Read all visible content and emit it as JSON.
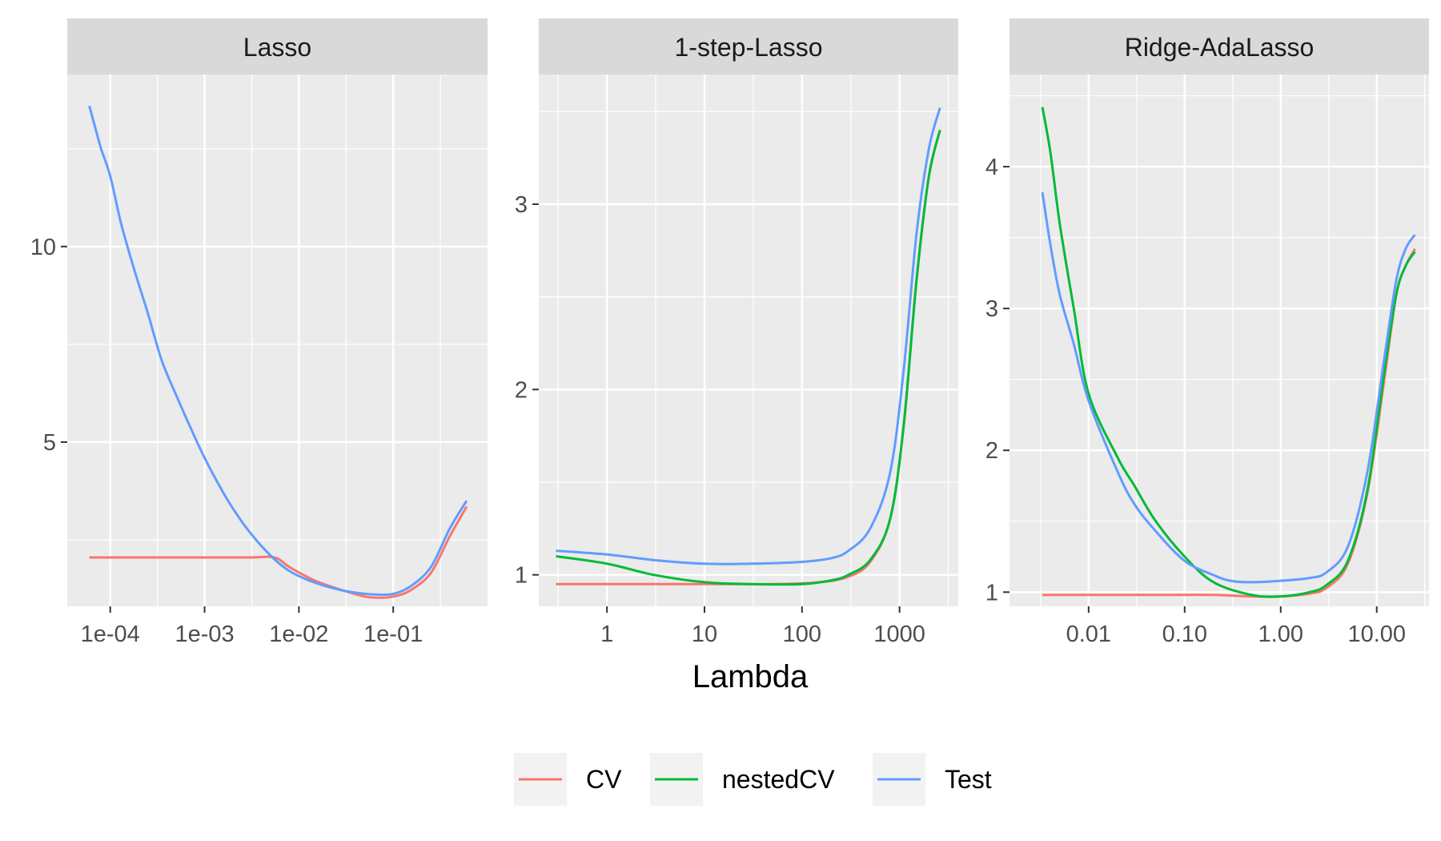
{
  "chart_data": {
    "type": "line",
    "xlabel": "Lambda",
    "ylabel": "",
    "x_scale": "log10",
    "grid": true,
    "legend_position": "bottom",
    "series_names": [
      "CV",
      "nestedCV",
      "Test"
    ],
    "series_colors": {
      "CV": "#F8766D",
      "nestedCV": "#00BA38",
      "Test": "#619CFF"
    },
    "panels": [
      {
        "title": "Lasso",
        "xlim": [
          3.5e-05,
          1.0
        ],
        "ylim": [
          0.8,
          14.4
        ],
        "x_ticks": [
          {
            "value": 0.0001,
            "label": "1e-04"
          },
          {
            "value": 0.001,
            "label": "1e-03"
          },
          {
            "value": 0.01,
            "label": "1e-02"
          },
          {
            "value": 0.1,
            "label": "1e-01"
          }
        ],
        "y_ticks": [
          {
            "value": 5,
            "label": "5"
          },
          {
            "value": 10,
            "label": "10"
          }
        ],
        "series": [
          {
            "name": "CV",
            "x": [
              6e-05,
              0.0001,
              0.0003,
              0.001,
              0.003,
              0.0055,
              0.008,
              0.015,
              0.03,
              0.05,
              0.07,
              0.1,
              0.15,
              0.25,
              0.4,
              0.6
            ],
            "y": [
              2.05,
              2.05,
              2.05,
              2.05,
              2.05,
              2.05,
              1.8,
              1.45,
              1.2,
              1.05,
              1.02,
              1.05,
              1.2,
              1.65,
              2.6,
              3.35
            ]
          },
          {
            "name": "nestedCV",
            "x": [],
            "y": []
          },
          {
            "name": "Test",
            "x": [
              6e-05,
              7e-05,
              8e-05,
              0.0001,
              0.00013,
              0.00018,
              0.00025,
              0.00035,
              0.0005,
              0.0007,
              0.001,
              0.0015,
              0.002,
              0.003,
              0.005,
              0.008,
              0.015,
              0.03,
              0.05,
              0.07,
              0.1,
              0.15,
              0.25,
              0.4,
              0.6
            ],
            "y": [
              13.6,
              13.0,
              12.5,
              11.8,
              10.6,
              9.4,
              8.3,
              7.1,
              6.2,
              5.4,
              4.6,
              3.8,
              3.3,
              2.7,
              2.1,
              1.7,
              1.4,
              1.2,
              1.12,
              1.1,
              1.12,
              1.3,
              1.8,
              2.8,
              3.5
            ]
          }
        ]
      },
      {
        "title": "1-step-Lasso",
        "xlim": [
          0.2,
          4000
        ],
        "ylim": [
          0.83,
          3.7
        ],
        "x_ticks": [
          {
            "value": 1,
            "label": "1"
          },
          {
            "value": 10,
            "label": "10"
          },
          {
            "value": 100,
            "label": "100"
          },
          {
            "value": 1000,
            "label": "1000"
          }
        ],
        "y_ticks": [
          {
            "value": 1,
            "label": "1"
          },
          {
            "value": 2,
            "label": "2"
          },
          {
            "value": 3,
            "label": "3"
          }
        ],
        "series": [
          {
            "name": "CV",
            "x": [
              0.3,
              1,
              10,
              50,
              150,
              300,
              500,
              800,
              1100,
              1500,
              2000,
              2600
            ],
            "y": [
              0.95,
              0.95,
              0.95,
              0.95,
              0.96,
              0.99,
              1.07,
              1.3,
              1.8,
              2.6,
              3.15,
              3.4
            ]
          },
          {
            "name": "nestedCV",
            "x": [
              0.3,
              1,
              3,
              10,
              30,
              100,
              200,
              300,
              500,
              800,
              1100,
              1500,
              2000,
              2600
            ],
            "y": [
              1.1,
              1.06,
              1.0,
              0.96,
              0.95,
              0.95,
              0.97,
              1.0,
              1.08,
              1.3,
              1.8,
              2.6,
              3.15,
              3.4
            ]
          },
          {
            "name": "Test",
            "x": [
              0.3,
              1,
              3,
              10,
              30,
              100,
              200,
              300,
              500,
              800,
              1100,
              1500,
              2000,
              2600
            ],
            "y": [
              1.13,
              1.11,
              1.08,
              1.06,
              1.06,
              1.07,
              1.09,
              1.13,
              1.25,
              1.55,
              2.1,
              2.85,
              3.3,
              3.52
            ]
          }
        ]
      },
      {
        "title": "Ridge-AdaLasso",
        "xlim": [
          0.0015,
          35
        ],
        "ylim": [
          0.9,
          4.65
        ],
        "x_ticks": [
          {
            "value": 0.01,
            "label": "0.01"
          },
          {
            "value": 0.1,
            "label": "0.10"
          },
          {
            "value": 1,
            "label": "1.00"
          },
          {
            "value": 10,
            "label": "10.00"
          }
        ],
        "y_ticks": [
          {
            "value": 1,
            "label": "1"
          },
          {
            "value": 2,
            "label": "2"
          },
          {
            "value": 3,
            "label": "3"
          },
          {
            "value": 4,
            "label": "4"
          }
        ],
        "series": [
          {
            "name": "CV",
            "x": [
              0.0033,
              0.01,
              0.05,
              0.2,
              0.5,
              1,
              2,
              3,
              5,
              8,
              12,
              16,
              20,
              25
            ],
            "y": [
              0.98,
              0.98,
              0.98,
              0.98,
              0.97,
              0.97,
              0.99,
              1.03,
              1.2,
              1.7,
              2.5,
              3.1,
              3.3,
              3.42
            ]
          },
          {
            "name": "nestedCV",
            "x": [
              0.0033,
              0.004,
              0.005,
              0.007,
              0.01,
              0.02,
              0.03,
              0.05,
              0.1,
              0.2,
              0.5,
              1,
              2,
              3,
              5,
              8,
              12,
              16,
              20,
              25
            ],
            "y": [
              4.42,
              4.1,
              3.6,
              3.0,
              2.4,
              1.95,
              1.75,
              1.5,
              1.25,
              1.07,
              0.98,
              0.97,
              1.0,
              1.05,
              1.22,
              1.72,
              2.55,
              3.1,
              3.3,
              3.4
            ]
          },
          {
            "name": "Test",
            "x": [
              0.0033,
              0.004,
              0.005,
              0.007,
              0.01,
              0.02,
              0.03,
              0.05,
              0.1,
              0.2,
              0.3,
              0.5,
              1,
              2,
              3,
              5,
              8,
              12,
              16,
              20,
              25
            ],
            "y": [
              3.82,
              3.45,
              3.1,
              2.75,
              2.35,
              1.85,
              1.62,
              1.43,
              1.22,
              1.12,
              1.08,
              1.07,
              1.08,
              1.1,
              1.14,
              1.32,
              1.85,
              2.65,
              3.2,
              3.42,
              3.52
            ]
          }
        ]
      }
    ]
  }
}
